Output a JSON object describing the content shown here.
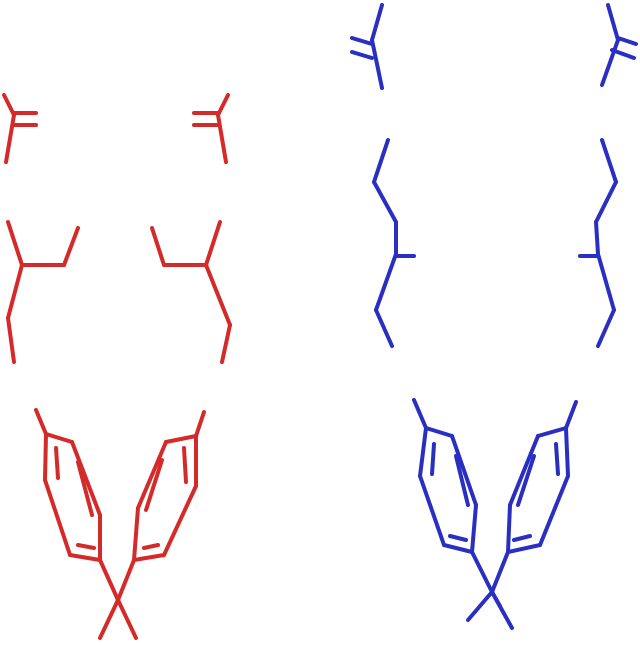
{
  "diagram": {
    "background": "#ffffff",
    "structures": [
      {
        "name": "left-structure",
        "color": "#d42a2a"
      },
      {
        "name": "right-structure",
        "color": "#2a2fc2"
      }
    ]
  }
}
